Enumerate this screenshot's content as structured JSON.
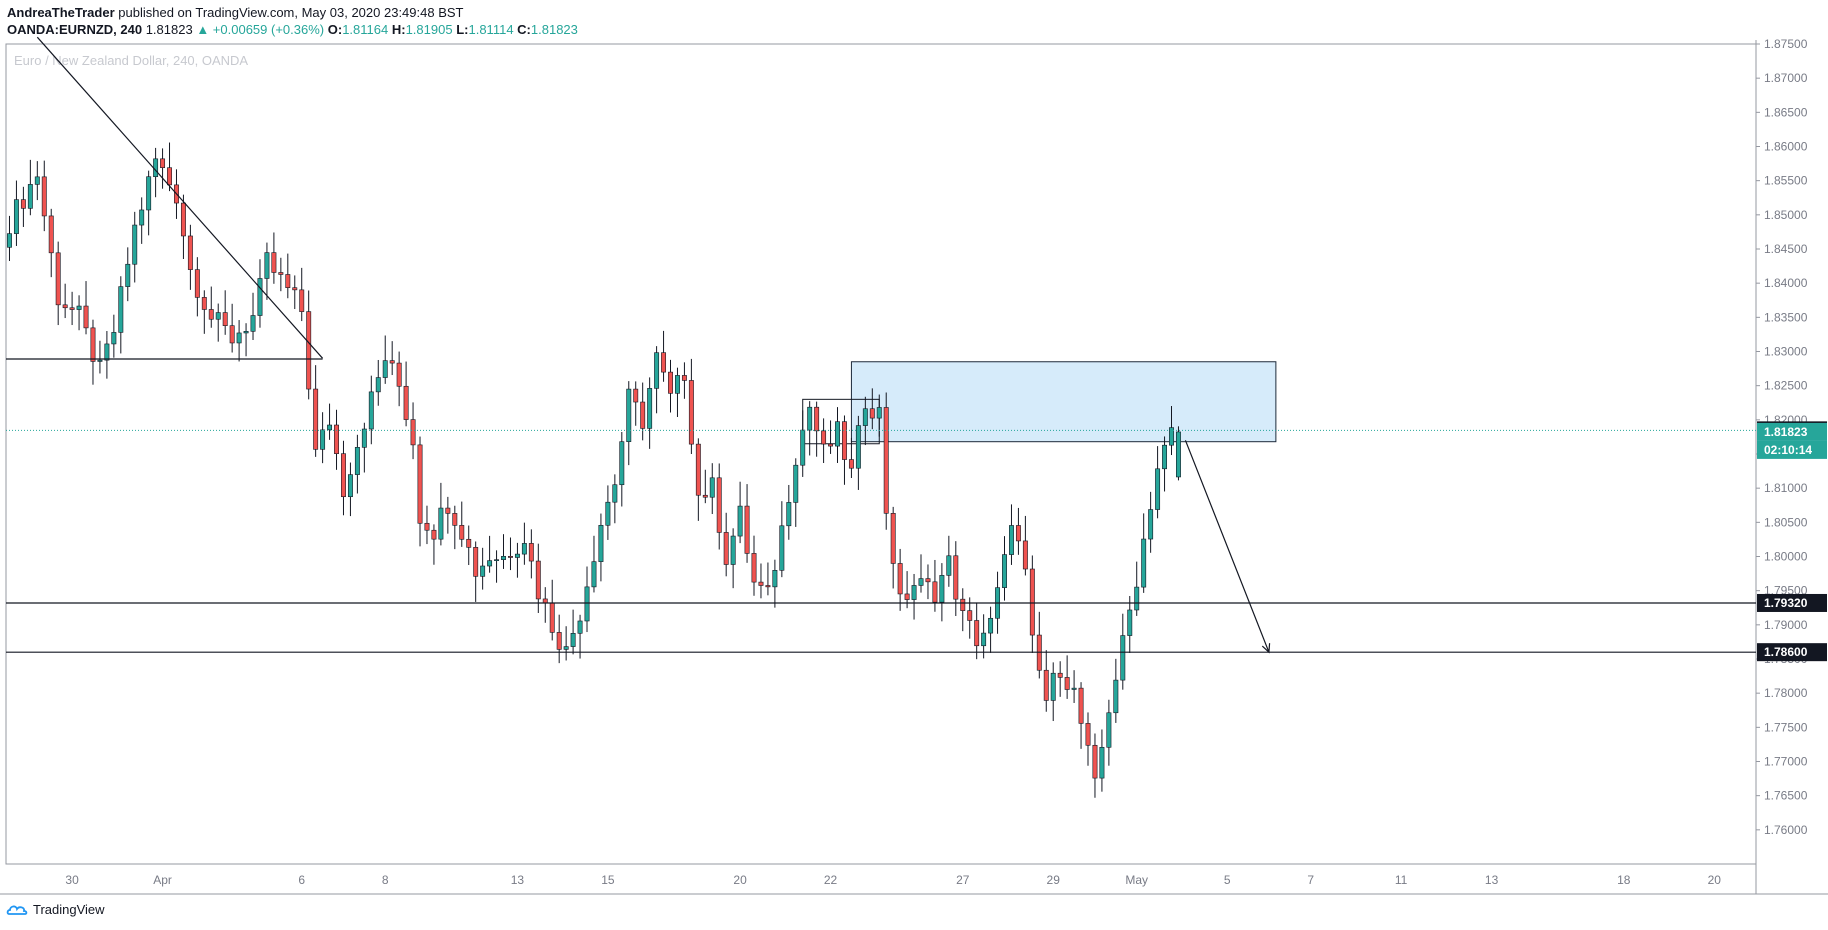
{
  "header": {
    "author": "AndreaTheTrader",
    "published_text": "published on TradingView.com, May 03, 2020 23:49:48 BST",
    "symbol": "OANDA:EURNZD, 240",
    "last": "1.81823",
    "change": "▲ +0.00659 (+0.36%)",
    "o_label": "O:",
    "o_value": "1.81164",
    "h_label": "H:",
    "h_value": "1.81905",
    "l_label": "L:",
    "l_value": "1.81114",
    "c_label": "C:",
    "c_value": "1.81823"
  },
  "brand": {
    "name": "TradingView"
  },
  "colors": {
    "up": "#26a69a",
    "down": "#ef5350",
    "zone": "#d6ebfa",
    "zone_border": "#1e2a3a"
  },
  "chart_data": {
    "type": "candlestick",
    "title": "Euro / New Zealand Dollar, 240, OANDA",
    "ylim": [
      1.755,
      1.875
    ],
    "y_ticks": [
      1.76,
      1.765,
      1.77,
      1.775,
      1.78,
      1.785,
      1.79,
      1.795,
      1.8,
      1.805,
      1.81,
      1.815,
      1.82,
      1.825,
      1.83,
      1.835,
      1.84,
      1.845,
      1.85,
      1.855,
      1.86,
      1.865,
      1.87,
      1.875
    ],
    "y_tick_labels": [
      "1.76000",
      "1.76500",
      "1.77000",
      "1.77500",
      "1.78000",
      "1.78500",
      "1.79000",
      "1.79500",
      "1.80000",
      "1.80500",
      "1.81000",
      "1.81500",
      "1.82000",
      "1.82500",
      "1.83000",
      "1.83500",
      "1.84000",
      "1.84500",
      "1.85000",
      "1.85500",
      "1.86000",
      "1.86500",
      "1.87000",
      "1.87500"
    ],
    "x_ticks": [
      {
        "i": 9,
        "label": "30"
      },
      {
        "i": 22,
        "label": "Apr"
      },
      {
        "i": 42,
        "label": "6"
      },
      {
        "i": 54,
        "label": "8"
      },
      {
        "i": 73,
        "label": "13"
      },
      {
        "i": 86,
        "label": "15"
      },
      {
        "i": 105,
        "label": "20"
      },
      {
        "i": 118,
        "label": "22"
      },
      {
        "i": 137,
        "label": "27"
      },
      {
        "i": 150,
        "label": "29"
      },
      {
        "i": 162,
        "label": "May"
      },
      {
        "i": 175,
        "label": "5"
      },
      {
        "i": 187,
        "label": "7"
      },
      {
        "i": 200,
        "label": "11"
      },
      {
        "i": 213,
        "label": "13"
      },
      {
        "i": 232,
        "label": "18"
      },
      {
        "i": 245,
        "label": "20"
      }
    ],
    "x_index_range": [
      -0.5,
      251
    ],
    "waypoints": [
      [
        0,
        1.849
      ],
      [
        4,
        1.856
      ],
      [
        7,
        1.838
      ],
      [
        10,
        1.835
      ],
      [
        13,
        1.827
      ],
      [
        15,
        1.833
      ],
      [
        18,
        1.848
      ],
      [
        21,
        1.858
      ],
      [
        24,
        1.853
      ],
      [
        26,
        1.842
      ],
      [
        29,
        1.835
      ],
      [
        32,
        1.832
      ],
      [
        35,
        1.835
      ],
      [
        37,
        1.843
      ],
      [
        40,
        1.839
      ],
      [
        42,
        1.836
      ],
      [
        44,
        1.815
      ],
      [
        46,
        1.82
      ],
      [
        48,
        1.81
      ],
      [
        51,
        1.82
      ],
      [
        54,
        1.829
      ],
      [
        56,
        1.825
      ],
      [
        58,
        1.817
      ],
      [
        59,
        1.806
      ],
      [
        61,
        1.804
      ],
      [
        63,
        1.808
      ],
      [
        65,
        1.804
      ],
      [
        67,
        1.798
      ],
      [
        69,
        1.8
      ],
      [
        71,
        1.8
      ],
      [
        74,
        1.803
      ],
      [
        76,
        1.795
      ],
      [
        78,
        1.79
      ],
      [
        80,
        1.786
      ],
      [
        82,
        1.792
      ],
      [
        85,
        1.805
      ],
      [
        87,
        1.811
      ],
      [
        89,
        1.823
      ],
      [
        91,
        1.82
      ],
      [
        93,
        1.829
      ],
      [
        95,
        1.823
      ],
      [
        97,
        1.827
      ],
      [
        99,
        1.809
      ],
      [
        101,
        1.81
      ],
      [
        103,
        1.8
      ],
      [
        105,
        1.806
      ],
      [
        107,
        1.796
      ],
      [
        109,
        1.794
      ],
      [
        111,
        1.804
      ],
      [
        113,
        1.815
      ],
      [
        115,
        1.822
      ],
      [
        117,
        1.815
      ],
      [
        119,
        1.818
      ],
      [
        121,
        1.812
      ],
      [
        123,
        1.823
      ],
      [
        125,
        1.821
      ],
      [
        126,
        1.807
      ],
      [
        128,
        1.793
      ],
      [
        130,
        1.796
      ],
      [
        133,
        1.795
      ],
      [
        135,
        1.799
      ],
      [
        137,
        1.791
      ],
      [
        139,
        1.788
      ],
      [
        141,
        1.79
      ],
      [
        143,
        1.799
      ],
      [
        144,
        1.806
      ],
      [
        146,
        1.797
      ],
      [
        147,
        1.787
      ],
      [
        149,
        1.779
      ],
      [
        151,
        1.784
      ],
      [
        153,
        1.78
      ],
      [
        155,
        1.771
      ],
      [
        156,
        1.766
      ],
      [
        158,
        1.778
      ],
      [
        160,
        1.787
      ],
      [
        162,
        1.797
      ],
      [
        164,
        1.808
      ],
      [
        165,
        1.813
      ],
      [
        167,
        1.818
      ],
      [
        168,
        1.8182
      ]
    ],
    "last_candle": {
      "i": 168,
      "o": 1.81164,
      "h": 1.81905,
      "l": 1.81114,
      "c": 1.81823
    },
    "lines": [
      {
        "type": "trendline",
        "from": [
          4,
          1.876
        ],
        "to": [
          45,
          1.829
        ]
      },
      {
        "type": "horizontal_segment",
        "y": 1.8289,
        "from": 0,
        "to": 45
      },
      {
        "type": "horizontal",
        "y": 1.7932
      },
      {
        "type": "horizontal",
        "y": 1.786
      },
      {
        "type": "dotted_horizontal",
        "y": 1.81846
      },
      {
        "type": "arrow",
        "from": [
          169,
          1.817
        ],
        "to": [
          181,
          1.786
        ]
      }
    ],
    "zones": [
      {
        "from_i": 121,
        "to_i": 182,
        "y_low": 1.8168,
        "y_high": 1.8285
      },
      {
        "from_i": 114,
        "to_i": 125,
        "y_low": 1.8165,
        "y_high": 1.823
      }
    ],
    "price_labels": [
      {
        "value": 1.81846,
        "text": "1.81846",
        "style": "black"
      },
      {
        "value": 1.81823,
        "text": "1.81823",
        "style": "teal"
      },
      {
        "value": 1.8156,
        "text": "02:10:14",
        "style": "teal"
      },
      {
        "value": 1.7932,
        "text": "1.79320",
        "style": "black"
      },
      {
        "value": 1.786,
        "text": "1.78600",
        "style": "black"
      }
    ]
  }
}
